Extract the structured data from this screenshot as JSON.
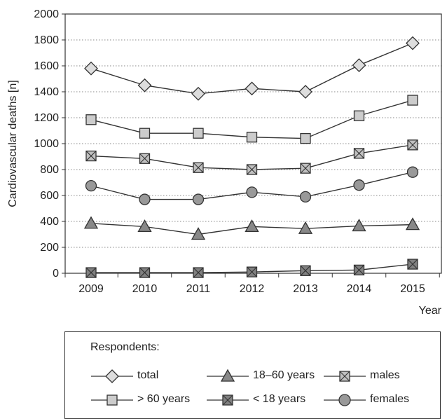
{
  "chart_data": {
    "type": "line",
    "x": [
      2009,
      2010,
      2011,
      2012,
      2013,
      2014,
      2015
    ],
    "xlabel": "Year",
    "ylabel": "Cardiovascular deaths [n]",
    "ylim": [
      0,
      2000
    ],
    "yticks": [
      0,
      200,
      400,
      600,
      800,
      1000,
      1200,
      1400,
      1600,
      1800,
      2000
    ],
    "grid": "horizontal dotted",
    "legend_title": "Respondents:",
    "legend_placement": "bottom",
    "series": [
      {
        "name": "total",
        "marker": "diamond",
        "color": "#dddddd",
        "values": [
          1580,
          1450,
          1385,
          1425,
          1400,
          1605,
          1775
        ]
      },
      {
        "name": "18–60 years",
        "marker": "triangle",
        "color": "#888888",
        "values": [
          385,
          360,
          300,
          360,
          345,
          365,
          375
        ]
      },
      {
        "name": "males",
        "marker": "square-x",
        "color": "#c0c0c0",
        "values": [
          905,
          885,
          815,
          800,
          810,
          925,
          990
        ]
      },
      {
        "name": "> 60 years",
        "marker": "square",
        "color": "#cccccc",
        "values": [
          1185,
          1080,
          1080,
          1050,
          1040,
          1215,
          1335
        ]
      },
      {
        "name": "< 18 years",
        "marker": "square-x",
        "color": "#808080",
        "values": [
          5,
          5,
          5,
          10,
          20,
          25,
          70
        ]
      },
      {
        "name": "females",
        "marker": "circle",
        "color": "#999999",
        "values": [
          675,
          570,
          570,
          625,
          590,
          680,
          780
        ]
      }
    ]
  }
}
